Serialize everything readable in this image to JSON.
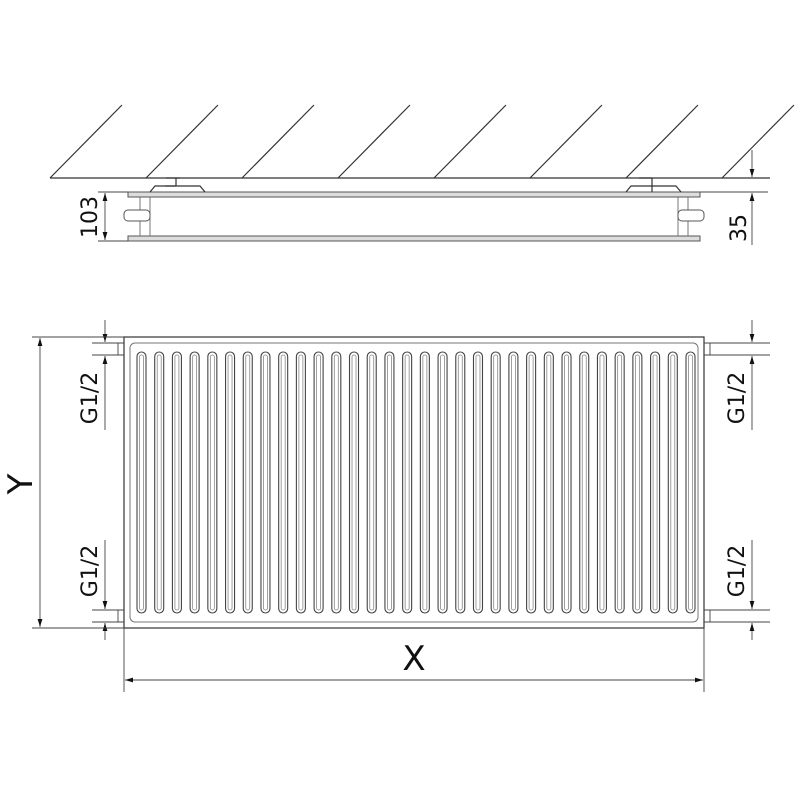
{
  "labels": {
    "depth": "103",
    "wall_gap": "35",
    "height": "Y",
    "width": "X",
    "connection_top_left": "G1/2",
    "connection_bottom_left": "G1/2",
    "connection_top_right": "G1/2",
    "connection_bottom_right": "G1/2"
  },
  "panel": {
    "fin_count": 32
  },
  "colors": {
    "line": "#333333",
    "background": "#ffffff"
  }
}
